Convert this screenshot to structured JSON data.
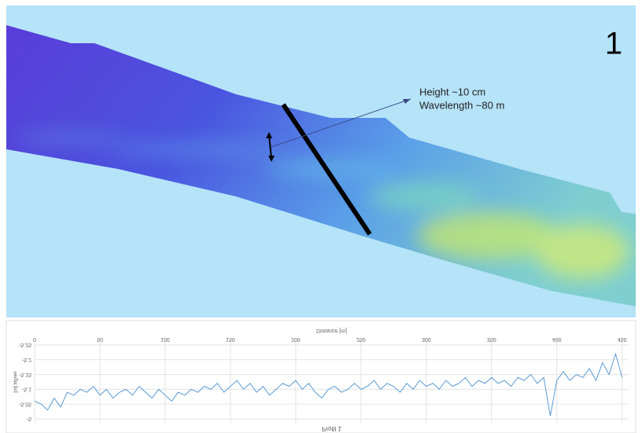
{
  "map": {
    "label": "1",
    "annotation": [
      "Height ~10 cm",
      "Wavelength ~80 m"
    ]
  },
  "chart_data": {
    "type": "line",
    "title": "Profil 1",
    "x_label": "Distance [m]",
    "y_label": "Height [m]",
    "x": [
      0,
      5,
      10,
      15,
      20,
      25,
      30,
      35,
      40,
      45,
      50,
      55,
      60,
      65,
      70,
      75,
      80,
      85,
      90,
      95,
      100,
      105,
      110,
      115,
      120,
      125,
      130,
      135,
      140,
      145,
      150,
      155,
      160,
      165,
      170,
      175,
      180,
      185,
      190,
      195,
      200,
      205,
      210,
      215,
      220,
      225,
      230,
      235,
      240,
      245,
      250,
      255,
      260,
      265,
      270,
      275,
      280,
      285,
      290,
      295,
      300,
      305,
      310,
      315,
      320,
      325,
      330,
      335,
      340,
      345,
      350,
      355,
      360,
      365,
      370,
      375,
      380,
      385,
      390,
      395,
      400,
      405,
      410,
      415,
      420,
      425,
      430,
      435,
      440,
      445,
      450
    ],
    "series": [
      {
        "color": "#5b9bd5",
        "values": [
          -5.06,
          -5.05,
          -5.03,
          -5.07,
          -5.04,
          -5.09,
          -5.08,
          -5.1,
          -5.09,
          -5.11,
          -5.08,
          -5.1,
          -5.07,
          -5.09,
          -5.1,
          -5.08,
          -5.11,
          -5.09,
          -5.07,
          -5.1,
          -5.08,
          -5.06,
          -5.09,
          -5.08,
          -5.1,
          -5.09,
          -5.11,
          -5.1,
          -5.12,
          -5.09,
          -5.11,
          -5.13,
          -5.1,
          -5.12,
          -5.09,
          -5.11,
          -5.08,
          -5.1,
          -5.12,
          -5.11,
          -5.13,
          -5.1,
          -5.12,
          -5.09,
          -5.07,
          -5.1,
          -5.11,
          -5.09,
          -5.1,
          -5.12,
          -5.1,
          -5.11,
          -5.13,
          -5.1,
          -5.12,
          -5.11,
          -5.09,
          -5.12,
          -5.1,
          -5.13,
          -5.11,
          -5.12,
          -5.1,
          -5.13,
          -5.11,
          -5.12,
          -5.14,
          -5.11,
          -5.13,
          -5.12,
          -5.14,
          -5.12,
          -5.13,
          -5.11,
          -5.14,
          -5.13,
          -5.15,
          -5.12,
          -5.14,
          -5.01,
          -5.13,
          -5.16,
          -5.13,
          -5.15,
          -5.14,
          -5.17,
          -5.13,
          -5.19,
          -5.15,
          -5.22,
          -5.14
        ]
      }
    ],
    "xlim": [
      0,
      455
    ],
    "xticks": [
      0,
      50,
      100,
      150,
      200,
      250,
      300,
      350,
      400,
      450
    ],
    "ylim": [
      -5,
      -5.25
    ],
    "yticks": [
      -5,
      -5.05,
      -5.1,
      -5.15,
      -5.2,
      -5.25
    ],
    "grid": true
  }
}
